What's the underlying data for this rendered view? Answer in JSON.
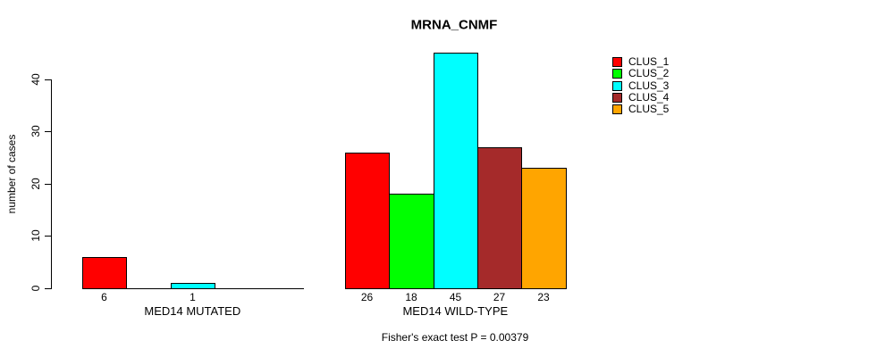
{
  "chart_data": {
    "type": "bar",
    "title": "MRNA_CNMF",
    "ylabel": "number of cases",
    "footer": "Fisher's exact test P = 0.00379",
    "yticks": [
      0,
      10,
      20,
      30,
      40
    ],
    "ylim": [
      0,
      45
    ],
    "grid": false,
    "legend_position": "right-outside",
    "clusters": [
      {
        "name": "CLUS_1",
        "color": "#FF0000"
      },
      {
        "name": "CLUS_2",
        "color": "#00FF00"
      },
      {
        "name": "CLUS_3",
        "color": "#00FFFF"
      },
      {
        "name": "CLUS_4",
        "color": "#A52A2A"
      },
      {
        "name": "CLUS_5",
        "color": "#FFA500"
      }
    ],
    "groups": [
      {
        "label": "MED14 MUTATED",
        "values": [
          6,
          0,
          1,
          0,
          0
        ],
        "bar_labels": [
          "6",
          null,
          "1",
          null,
          null
        ]
      },
      {
        "label": "MED14 WILD-TYPE",
        "values": [
          26,
          18,
          45,
          27,
          23
        ],
        "bar_labels": [
          "26",
          "18",
          "45",
          "27",
          "23"
        ]
      }
    ],
    "colors": {
      "axis": "#000000",
      "text": "#000000",
      "background": "#ffffff"
    }
  }
}
